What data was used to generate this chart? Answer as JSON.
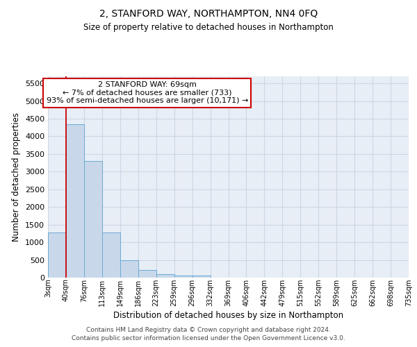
{
  "title": "2, STANFORD WAY, NORTHAMPTON, NN4 0FQ",
  "subtitle": "Size of property relative to detached houses in Northampton",
  "xlabel": "Distribution of detached houses by size in Northampton",
  "ylabel": "Number of detached properties",
  "bar_color": "#c8d8ea",
  "bar_edge_color": "#6aaad4",
  "bar_values": [
    1270,
    4350,
    3300,
    1270,
    490,
    210,
    90,
    65,
    55,
    0,
    0,
    0,
    0,
    0,
    0,
    0,
    0,
    0,
    0,
    0
  ],
  "categories": [
    "3sqm",
    "40sqm",
    "76sqm",
    "113sqm",
    "149sqm",
    "186sqm",
    "223sqm",
    "259sqm",
    "296sqm",
    "332sqm",
    "369sqm",
    "406sqm",
    "442sqm",
    "479sqm",
    "515sqm",
    "552sqm",
    "589sqm",
    "625sqm",
    "662sqm",
    "698sqm",
    "735sqm"
  ],
  "ylim": [
    0,
    5700
  ],
  "yticks": [
    0,
    500,
    1000,
    1500,
    2000,
    2500,
    3000,
    3500,
    4000,
    4500,
    5000,
    5500
  ],
  "property_line_x": 1,
  "annotation_text": "2 STANFORD WAY: 69sqm\n← 7% of detached houses are smaller (733)\n93% of semi-detached houses are larger (10,171) →",
  "annotation_box_color": "#ffffff",
  "annotation_border_color": "#cc0000",
  "red_line_color": "#cc0000",
  "grid_color": "#ccd6e4",
  "bg_color": "#e8eef5",
  "footer_line1": "Contains HM Land Registry data © Crown copyright and database right 2024.",
  "footer_line2": "Contains public sector information licensed under the Open Government Licence v3.0."
}
